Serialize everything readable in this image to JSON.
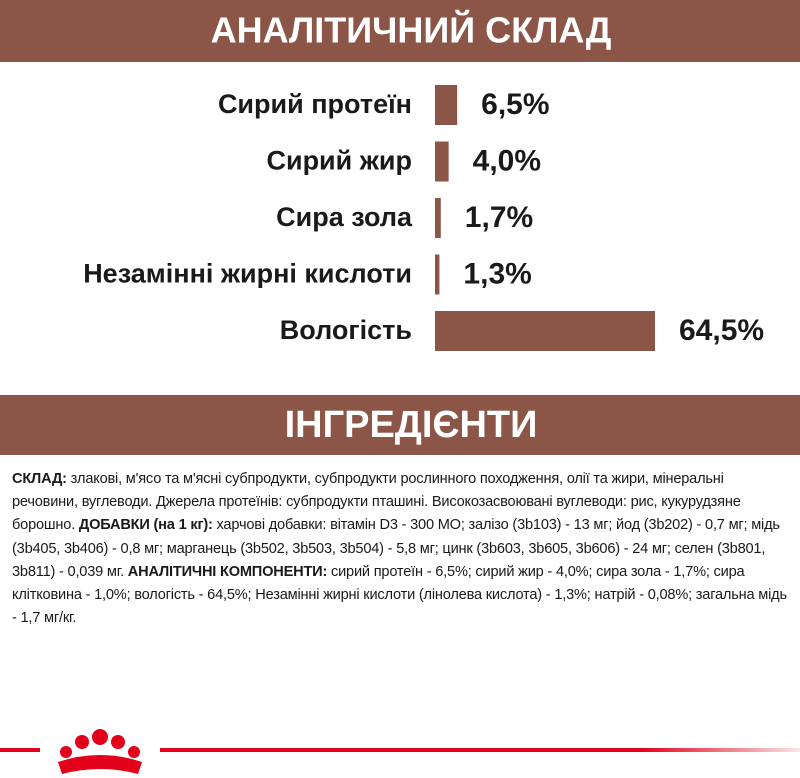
{
  "chart_data": {
    "type": "bar",
    "orientation": "horizontal",
    "title": "АНАЛІТИЧНИЙ СКЛАД",
    "categories": [
      "Сирий протеїн",
      "Сирий жир",
      "Сира зола",
      "Незамінні жирні кислоти",
      "Вологість"
    ],
    "values": [
      6.5,
      4.0,
      1.7,
      1.3,
      64.5
    ],
    "value_labels": [
      "6,5%",
      "4,0%",
      "1,7%",
      "1,3%",
      "64,5%"
    ],
    "color": "#8b5648"
  },
  "ingredients": {
    "title": "ІНГРЕДІЄНТИ",
    "runs": [
      {
        "text": "СКЛАД:",
        "bold": true
      },
      {
        "text": " злакові, м'ясо та м'ясні субпродукти, субпродукти рослинного походження, олії та жири, мінеральні речовини, вуглеводи. Джерела протеїнів: субпродукти пташині. Високозасвоювані вуглеводи: рис, кукурудзяне борошно. ",
        "bold": false
      },
      {
        "text": "ДОБАВКИ (на 1 кг):",
        "bold": true
      },
      {
        "text": " харчові добавки: вітамін D3 - 300 МО; залізо (3b103) - 13 мг; йод (3b202) - 0,7 мг; мідь (3b405, 3b406) - 0,8 мг; марганець (3b502, 3b503, 3b504) - 5,8 мг; цинк (3b603, 3b605, 3b606) - 24 мг; селен (3b801, 3b811) - 0,039 мг. ",
        "bold": false
      },
      {
        "text": "АНАЛІТИЧНІ КОМПОНЕНТИ:",
        "bold": true
      },
      {
        "text": " сирий протеїн - 6,5%; сирий жир - 4,0%; сира зола - 1,7%; сира клітковина - 1,0%; вологість - 64,5%; Незамінні жирні кислоти (лінолева кислота) - 1,3%; натрій - 0,08%; загальна мідь - 1,7 мг/кг.",
        "bold": false
      }
    ]
  }
}
